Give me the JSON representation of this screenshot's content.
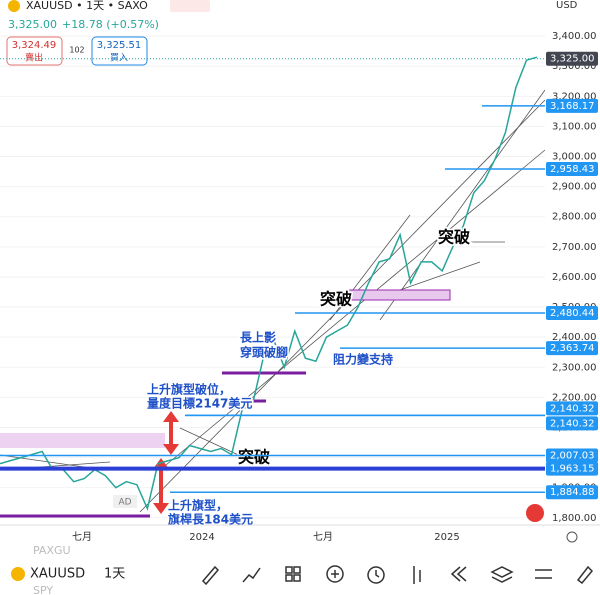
{
  "header": {
    "symbol": "XAUUSD • 1天 • SAXO",
    "currency": "USD",
    "price": "3,325.00",
    "change": "+18.78 (+0.57%)",
    "sell_price": "3,324.49",
    "sell_label": "賣出",
    "spread": "102",
    "buy_price": "3,325.51",
    "buy_label": "買入"
  },
  "chart_data": {
    "type": "line",
    "color": "#26a69a",
    "values": [
      1980,
      1990,
      2000,
      2010,
      2020,
      1960,
      1960,
      1920,
      1930,
      1960,
      1940,
      1900,
      1920,
      1910,
      1830,
      1980,
      1990,
      2000,
      2040,
      2030,
      2020,
      2030,
      2010,
      2160,
      2180,
      2330,
      2390,
      2300,
      2420,
      2330,
      2320,
      2400,
      2420,
      2440,
      2500,
      2580,
      2650,
      2660,
      2740,
      2580,
      2650,
      2650,
      2620,
      2700,
      2770,
      2880,
      2920,
      2990,
      3080,
      3230,
      3320,
      3330
    ],
    "ylim": [
      1776,
      3520
    ],
    "yticks": [
      {
        "value": 1800,
        "label": "1,800.00"
      },
      {
        "value": 1900,
        "label": "1,900.00"
      },
      {
        "value": 2000,
        "label": "2,000.00"
      },
      {
        "value": 2100,
        "label": "2,100.00"
      },
      {
        "value": 2200,
        "label": "2,200.00"
      },
      {
        "value": 2300,
        "label": "2,300.00"
      },
      {
        "value": 2400,
        "label": "2,400.00"
      },
      {
        "value": 2500,
        "label": "2,500.00"
      },
      {
        "value": 2600,
        "label": "2,600.00"
      },
      {
        "value": 2700,
        "label": "2,700.00"
      },
      {
        "value": 2800,
        "label": "2,800.00"
      },
      {
        "value": 2900,
        "label": "2,900.00"
      },
      {
        "value": 3000,
        "label": "3,000.00"
      },
      {
        "value": 3100,
        "label": "3,100.00"
      },
      {
        "value": 3200,
        "label": "3,200.00"
      },
      {
        "value": 3300,
        "label": "3,300.00"
      },
      {
        "value": 3400,
        "label": "3,400.00"
      }
    ],
    "x_labels": [
      "七月",
      "2024",
      "七月",
      "2025"
    ],
    "current_price": {
      "value": 3325,
      "label": "3,325.00"
    },
    "price_levels": [
      {
        "value": 3168.17,
        "label": "3,168.17"
      },
      {
        "value": 2958.43,
        "label": "2,958.43"
      },
      {
        "value": 2480.44,
        "label": "2,480.44"
      },
      {
        "value": 2363.74,
        "label": "2,363.74"
      },
      {
        "value": 2140.32,
        "label": "2,140.32"
      },
      {
        "value": 2140.32,
        "label": "2,140.32"
      },
      {
        "value": 2007.03,
        "label": "2,007.03"
      },
      {
        "value": 1963.15,
        "label": "1,963.15"
      },
      {
        "value": 1884.88,
        "label": "1,884.88"
      }
    ],
    "annotations": [
      "突破",
      "突破",
      "長上影",
      "穿頭破腳",
      "阻力變支持",
      "上升旗型破位，",
      "量度目標2147美元",
      "突破",
      "上升旗型，",
      "旗桿長184美元"
    ],
    "ad_label": "AD"
  },
  "toolbar": {
    "symbol": "XAUUSD",
    "interval": "1天",
    "ghost_symbols": [
      "PAXGU",
      "SPY"
    ]
  }
}
